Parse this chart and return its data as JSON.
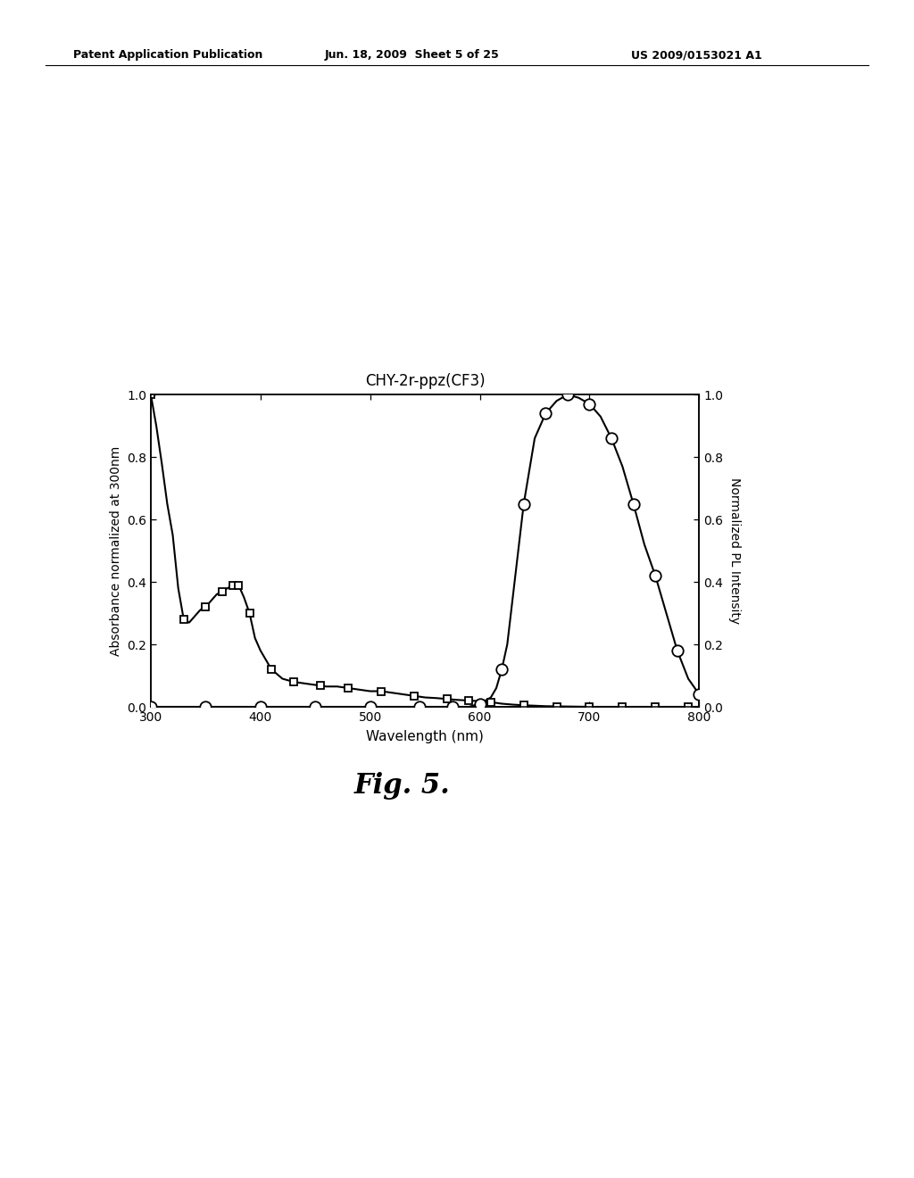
{
  "title": "CHY-2r-ppz(CF3)",
  "xlabel": "Wavelength (nm)",
  "ylabel_left": "Absorbance normalized at 300nm",
  "ylabel_right": "Normalized PL Intensity",
  "xlim": [
    300,
    800
  ],
  "ylim": [
    0.0,
    1.0
  ],
  "header_left": "Patent Application Publication",
  "header_mid": "Jun. 18, 2009  Sheet 5 of 25",
  "header_right": "US 2009/0153021 A1",
  "fig_caption": "Fig. 5.",
  "abs_x": [
    300,
    305,
    310,
    315,
    320,
    325,
    330,
    335,
    340,
    345,
    350,
    355,
    360,
    365,
    370,
    375,
    380,
    385,
    390,
    395,
    400,
    410,
    420,
    430,
    440,
    450,
    460,
    470,
    480,
    490,
    500,
    510,
    520,
    530,
    540,
    550,
    560,
    570,
    580,
    590,
    600,
    610,
    620,
    630,
    640,
    660,
    680,
    700,
    720,
    740,
    760,
    780,
    800
  ],
  "abs_y": [
    1.0,
    0.9,
    0.78,
    0.65,
    0.55,
    0.38,
    0.28,
    0.27,
    0.29,
    0.31,
    0.32,
    0.34,
    0.36,
    0.37,
    0.38,
    0.39,
    0.39,
    0.35,
    0.3,
    0.22,
    0.18,
    0.12,
    0.09,
    0.08,
    0.075,
    0.07,
    0.065,
    0.065,
    0.06,
    0.055,
    0.05,
    0.05,
    0.045,
    0.04,
    0.035,
    0.03,
    0.028,
    0.025,
    0.022,
    0.02,
    0.018,
    0.015,
    0.01,
    0.007,
    0.005,
    0.002,
    0.001,
    0.0,
    0.0,
    0.0,
    0.0,
    0.0,
    0.0
  ],
  "abs_markers_x": [
    300,
    330,
    350,
    365,
    375,
    380,
    390,
    410,
    430,
    455,
    480,
    510,
    540,
    570,
    590,
    610,
    640,
    670,
    700,
    730,
    760,
    790
  ],
  "abs_markers_y": [
    1.0,
    0.28,
    0.32,
    0.37,
    0.39,
    0.39,
    0.3,
    0.12,
    0.08,
    0.07,
    0.06,
    0.05,
    0.035,
    0.025,
    0.02,
    0.015,
    0.005,
    0.001,
    0.0,
    0.0,
    0.0,
    0.0
  ],
  "pl_x": [
    300,
    350,
    400,
    450,
    500,
    540,
    560,
    570,
    580,
    590,
    600,
    610,
    615,
    620,
    625,
    630,
    640,
    650,
    660,
    670,
    680,
    690,
    700,
    710,
    720,
    730,
    740,
    750,
    760,
    770,
    780,
    790,
    800
  ],
  "pl_y": [
    0.0,
    0.0,
    0.0,
    0.0,
    0.0,
    0.0,
    0.0,
    0.0,
    0.0,
    0.0,
    0.01,
    0.03,
    0.06,
    0.12,
    0.2,
    0.35,
    0.65,
    0.86,
    0.94,
    0.98,
    1.0,
    0.99,
    0.97,
    0.93,
    0.86,
    0.77,
    0.65,
    0.52,
    0.42,
    0.3,
    0.18,
    0.09,
    0.04
  ],
  "pl_markers_x": [
    300,
    350,
    400,
    450,
    500,
    545,
    575,
    600,
    620,
    640,
    660,
    680,
    700,
    720,
    740,
    760,
    780,
    800
  ],
  "pl_markers_y": [
    0.0,
    0.0,
    0.0,
    0.0,
    0.0,
    0.0,
    0.0,
    0.01,
    0.12,
    0.65,
    0.94,
    1.0,
    0.97,
    0.86,
    0.65,
    0.42,
    0.18,
    0.04
  ],
  "background_color": "#ffffff",
  "line_color": "#000000"
}
